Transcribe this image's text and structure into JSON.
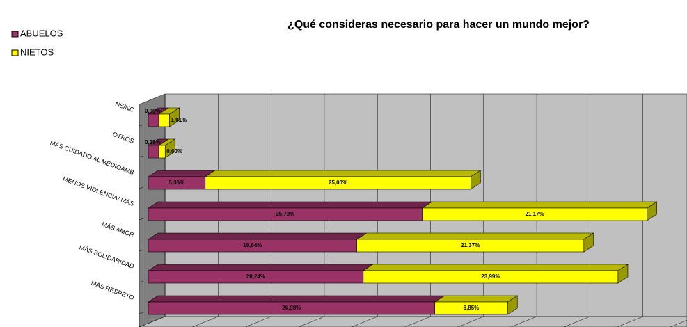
{
  "chart_data": {
    "type": "bar3d-stacked-horizontal",
    "title": "¿Qué consideras necesario para hacer un mundo mejor?",
    "categories": [
      "NS/NC",
      "OTROS",
      "MÁS CUIDADO AL MEDIOAMB",
      "MENOS VIOLENCIA/ MÁS",
      "MÁS AMOR",
      "MÁS SOLIDARIDAD",
      "MÁS RESPETO"
    ],
    "series": [
      {
        "name": "ABUELOS",
        "color": "#993366",
        "values": [
          0.99,
          0.99,
          5.36,
          25.79,
          19.64,
          20.24,
          26.98
        ],
        "value_labels": [
          "0,99%",
          "0,99%",
          "5,36%",
          "25,79%",
          "19,64%",
          "20,24%",
          "26,98%"
        ]
      },
      {
        "name": "NIETOS",
        "color": "#ffff00",
        "values": [
          1.01,
          0.6,
          25.0,
          21.17,
          21.37,
          23.99,
          6.85
        ],
        "value_labels": [
          "1,01%",
          "0,60%",
          "25,00%",
          "21,17%",
          "21,37%",
          "23,99%",
          "6,85%"
        ]
      }
    ],
    "xlim": [
      0,
      50
    ],
    "xticks": [
      0,
      5,
      10,
      15,
      20,
      25,
      30,
      35,
      40,
      45,
      50
    ],
    "grid": true,
    "legend": "top-left"
  }
}
